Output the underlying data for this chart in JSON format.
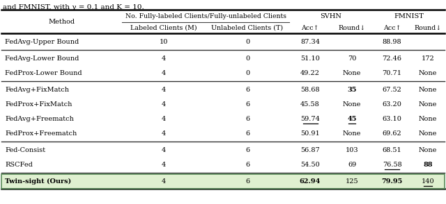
{
  "title_top": "and FMNIST, with γ = 0.1 and K = 10.",
  "col_headers_row1_labels": [
    "No. Fully-labeled Clients/Fully-unlabeled Clients",
    "SVHN",
    "FMNIST"
  ],
  "col_headers_row2": [
    "Labeled Clients (M)",
    "Unlabeled Clients (T)",
    "Acc↑",
    "Round↓",
    "Acc↑",
    "Round↓"
  ],
  "rows": [
    {
      "method": "FedAvg-Upper Bound",
      "M": "10",
      "T": "0",
      "svhn_acc": "87.34",
      "svhn_round": "",
      "fmnist_acc": "88.98",
      "fmnist_round": "",
      "group": "upper"
    },
    {
      "method": "FedAvg-Lower Bound",
      "M": "4",
      "T": "0",
      "svhn_acc": "51.10",
      "svhn_round": "70",
      "fmnist_acc": "72.46",
      "fmnist_round": "172",
      "group": "lower"
    },
    {
      "method": "FedProx-Lower Bound",
      "M": "4",
      "T": "0",
      "svhn_acc": "49.22",
      "svhn_round": "None",
      "fmnist_acc": "70.71",
      "fmnist_round": "None",
      "group": "lower"
    },
    {
      "method": "FedAvg+FixMatch",
      "M": "4",
      "T": "6",
      "svhn_acc": "58.68",
      "svhn_round": "35",
      "fmnist_acc": "67.52",
      "fmnist_round": "None",
      "group": "fix"
    },
    {
      "method": "FedProx+FixMatch",
      "M": "4",
      "T": "6",
      "svhn_acc": "45.58",
      "svhn_round": "None",
      "fmnist_acc": "63.20",
      "fmnist_round": "None",
      "group": "fix"
    },
    {
      "method": "FedAvg+Freematch",
      "M": "4",
      "T": "6",
      "svhn_acc": "59.74",
      "svhn_round": "45",
      "fmnist_acc": "63.10",
      "fmnist_round": "None",
      "group": "fix"
    },
    {
      "method": "FedProx+Freematch",
      "M": "4",
      "T": "6",
      "svhn_acc": "50.91",
      "svhn_round": "None",
      "fmnist_acc": "69.62",
      "fmnist_round": "None",
      "group": "fix"
    },
    {
      "method": "Fed-Consist",
      "M": "4",
      "T": "6",
      "svhn_acc": "56.87",
      "svhn_round": "103",
      "fmnist_acc": "68.51",
      "fmnist_round": "None",
      "group": "consist"
    },
    {
      "method": "RSCFed",
      "M": "4",
      "T": "6",
      "svhn_acc": "54.50",
      "svhn_round": "69",
      "fmnist_acc": "76.58",
      "fmnist_round": "88",
      "group": "consist"
    },
    {
      "method": "Twin-sight (Ours)",
      "M": "4",
      "T": "6",
      "svhn_acc": "62.94",
      "svhn_round": "125",
      "fmnist_acc": "79.95",
      "fmnist_round": "140",
      "group": "ours"
    }
  ],
  "bold_cells": {
    "FedAvg+FixMatch": [
      "svhn_round"
    ],
    "FedAvg+Freematch": [
      "svhn_round"
    ],
    "RSCFed": [
      "fmnist_round"
    ],
    "Twin-sight (Ours)": [
      "method",
      "svhn_acc",
      "fmnist_acc"
    ]
  },
  "underline_cells": {
    "FedAvg+Freematch": [
      "svhn_acc",
      "svhn_round"
    ],
    "RSCFed": [
      "fmnist_acc"
    ],
    "Twin-sight (Ours)": [
      "fmnist_round"
    ]
  },
  "highlight_row": "Twin-sight (Ours)",
  "highlight_color": "#dff0d0",
  "bg_color": "#ffffff"
}
